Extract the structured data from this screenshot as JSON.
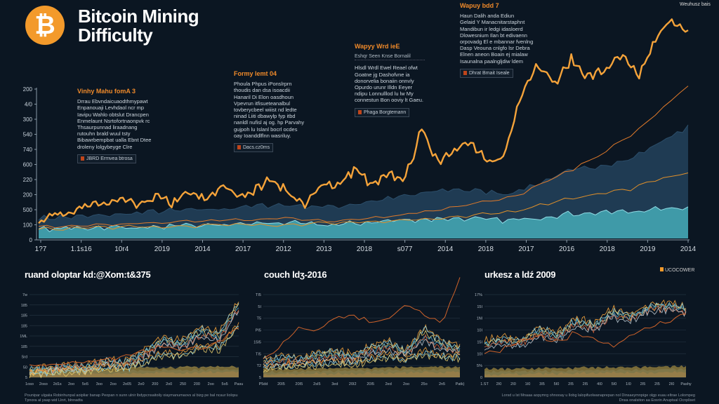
{
  "header": {
    "title_line1": "Bitcoin Mining",
    "title_line2": "Difficulty",
    "logo_glyph": "₿"
  },
  "top_legend": "Weuhusz bais",
  "annotations": [
    {
      "title": "Vinhy Mahu fomA 3",
      "lines": [
        "Drrau Ebvndaicuaodthmypawt",
        "Enpanouaji Levhdaol ncr mp",
        "Iavipu Wahlo obtslut Drancpen",
        "Enmelaunt Nsrtofortnaonpvk rc",
        "Thsaurpunnad liraadnang",
        "rutouhn brald wuul tsty",
        "Bibawrbempbat ualla Ebnt Dtee",
        "droleny lolgybeyge Clre"
      ],
      "button": "JBRD Ermvea btrosa"
    },
    {
      "title": "Formy lemt 04",
      "lines": [
        "Phoula Phpus iPonslrprn",
        "thoudis dan dsa isoacdii",
        "Hanaril Di Elon oasdhoun",
        "Vpevrun itfisueteanalbul",
        "tovberycbeel wiiist nd ledte",
        "ninad Liiti dbawylp fyp itbd",
        "nanldl nufisl aj og. hp Parvahy",
        "gujpoh lu Islanl bocrl ocdes",
        "oay Ioanddlflnn wasriluy."
      ],
      "button": "Dacs.cz0ms"
    },
    {
      "title": "Wapyy Wrd ieE",
      "sub": "Eshqr Seen Knse Bornalil",
      "lines": [
        "Hlsdl Wrdl Ewel Reael ofwt",
        "Goatne jg Dashofvne ia",
        "donorvelia bonaiin onnvly",
        "Opurdo urunr Illdn Eeyer",
        "ndipu Lonnulllod lu lw My",
        "connestun Bon ooviy lt Gaeu."
      ],
      "button": "Phaga Borgtemann"
    },
    {
      "title": "Wapuy bdd 7",
      "lines": [
        "Haun Dalih anda Ediun",
        "Gelaid Y Manacnitarstaphnt",
        "Mandibun ir ledgi idasloerd",
        "Dlowesnium Ilan bt edivaenn",
        "orpovadg El e mbannar fvenlng",
        "Dasp Veouna cnlgfo lsr Debra",
        "Elnen aneon Boain ej mialaw",
        "Isaunalna paalngljdiw ldem"
      ],
      "button": "Dhrat Bmait Iseale"
    }
  ],
  "panels": [
    {
      "title": "ruand oloptar kd:@Xom:t&375",
      "yticks": [
        "7w",
        "185",
        "185",
        "185",
        "1ML",
        "185",
        "Srd",
        "50",
        "5"
      ],
      "xticks": [
        "1oso",
        "2oso",
        "2d1s",
        "2oo",
        "5o5",
        "3oo",
        "2oo",
        "2o05",
        "2o0",
        "200",
        "2o0",
        "250",
        "200",
        "2oo",
        "5o5",
        "Pasu"
      ]
    },
    {
      "title": "couch ldʒ-2016",
      "yticks": [
        "TI5",
        "5I",
        "T5",
        "PI5",
        "15I5",
        "TI5",
        "T2",
        "5"
      ],
      "xticks": [
        "P5dd",
        "20I5",
        "20I5",
        "2sI5",
        "3ed",
        "20I2",
        "20I5",
        "2ed",
        "2oo",
        "25o",
        "2n5",
        "Patk)"
      ]
    },
    {
      "title": "urkesz a ldź 2009",
      "legend": "UCOCOWER",
      "yticks": [
        "17%",
        "15I",
        "1Nl",
        "10I",
        "15I",
        "10I",
        "5%",
        "0"
      ],
      "xticks": [
        "1.ST",
        "2I0",
        "2I0",
        "1I0",
        "3I5",
        "5I0",
        "2I5",
        "2I5",
        "4I0",
        "5I0",
        "1I0",
        "2I5",
        "2I5",
        "2I0",
        "Pashy"
      ]
    }
  ],
  "footer": {
    "left": [
      "Pounipar ulgaiia Robinhunpal aoipliar banap Peopan n sunn ulnir lbdypcnsaitoily oiaymanumaovs al bizg pe bal ncaur liolqsu",
      "Tpnora al yaap wid Llnrt, blnnadta"
    ],
    "right": [
      "Lorsd u lst Mnaaa aopymrg ohnooay u llobg lalopifuolwanaprepan nol Dinsaeymnpige olgp euau eltrae Lolompeg",
      "Dnsa onalsiton aa Eosrin Anuptsal Ocnpliset"
    ]
  },
  "chart_data": {
    "type": "area",
    "title": "Bitcoin Mining Difficulty",
    "xlabel": "",
    "ylabel": "",
    "x_tick_labels": [
      "1?7",
      "1.1s16",
      "10r4",
      "2019",
      "2014",
      "2017",
      "2012",
      "2013",
      "2018",
      "s077",
      "2014",
      "2018",
      "2017",
      "2016",
      "2018",
      "2019",
      "2014"
    ],
    "y_tick_labels": [
      "200",
      "4/0",
      "300",
      "540",
      "740",
      "600",
      "220",
      "200",
      "500",
      "100",
      "0"
    ],
    "ylim": [
      0,
      100
    ],
    "grid": false,
    "series": [
      {
        "name": "difficulty-main",
        "kind": "line",
        "color": "#f5a33a",
        "values": [
          7.8,
          10.9,
          12.5,
          14.1,
          15.6,
          17.2,
          14.1,
          18.8,
          15.6,
          20.3,
          17.2,
          23.4,
          18.8,
          21.9,
          26.6,
          20.3,
          14.1,
          25,
          23.4,
          31.3,
          23.4,
          28.1,
          26.6,
          48.4,
          34.4,
          40.6,
          42.2,
          32.8,
          37.5,
          65.6,
          78.1,
          68.8,
          79.7,
          71.9,
          75,
          81.3,
          71.9,
          87.5,
          98.4,
          90.6
        ]
      },
      {
        "name": "dark-area",
        "kind": "area",
        "color": "#1f3b53",
        "values": [
          9,
          10,
          12,
          13,
          15,
          14,
          18,
          22,
          20,
          30,
          35,
          50
        ]
      },
      {
        "name": "teal-area",
        "kind": "area",
        "color": "#3f9aa8",
        "values": [
          4,
          5,
          5,
          6,
          7,
          6,
          8,
          9,
          8,
          11,
          12,
          14
        ]
      },
      {
        "name": "trend-1",
        "kind": "line",
        "color": "#e07a2a",
        "values": [
          5,
          6,
          7,
          8,
          9,
          8,
          10,
          14,
          18,
          30,
          45,
          68
        ]
      },
      {
        "name": "trend-2",
        "kind": "line",
        "color": "#e0902a",
        "values": [
          4,
          5,
          5,
          6,
          6,
          7,
          8,
          9,
          12,
          18,
          22,
          30
        ]
      }
    ],
    "panels": [
      {
        "series": [
          [
            10,
            12,
            14,
            13,
            20,
            18,
            30,
            45,
            40,
            55,
            50,
            85
          ],
          [
            8,
            10,
            12,
            12,
            17,
            16,
            26,
            40,
            36,
            48,
            45,
            78
          ],
          [
            6,
            8,
            9,
            10,
            12,
            12,
            18,
            28,
            26,
            35,
            34,
            60
          ]
        ],
        "trend": [
          12,
          14,
          16,
          18,
          20,
          22,
          28,
          35,
          30,
          32,
          40,
          55
        ]
      },
      {
        "series": [
          [
            20,
            24,
            22,
            28,
            30,
            26,
            35,
            40,
            30,
            55,
            40,
            35
          ],
          [
            16,
            18,
            20,
            22,
            24,
            22,
            30,
            34,
            28,
            45,
            34,
            30
          ],
          [
            12,
            14,
            15,
            16,
            18,
            17,
            22,
            25,
            22,
            30,
            25,
            24
          ]
        ],
        "trend": [
          20,
          35,
          55,
          50,
          65,
          70,
          60,
          65,
          80,
          70,
          60,
          110
        ]
      },
      {
        "series": [
          [
            40,
            45,
            42,
            55,
            50,
            65,
            60,
            75,
            70,
            80,
            82,
            78
          ],
          [
            35,
            40,
            38,
            50,
            45,
            60,
            55,
            70,
            66,
            76,
            78,
            74
          ]
        ],
        "trend": [
          25,
          30,
          40,
          45,
          38,
          50,
          40,
          35,
          45,
          55,
          60,
          70
        ]
      }
    ]
  }
}
